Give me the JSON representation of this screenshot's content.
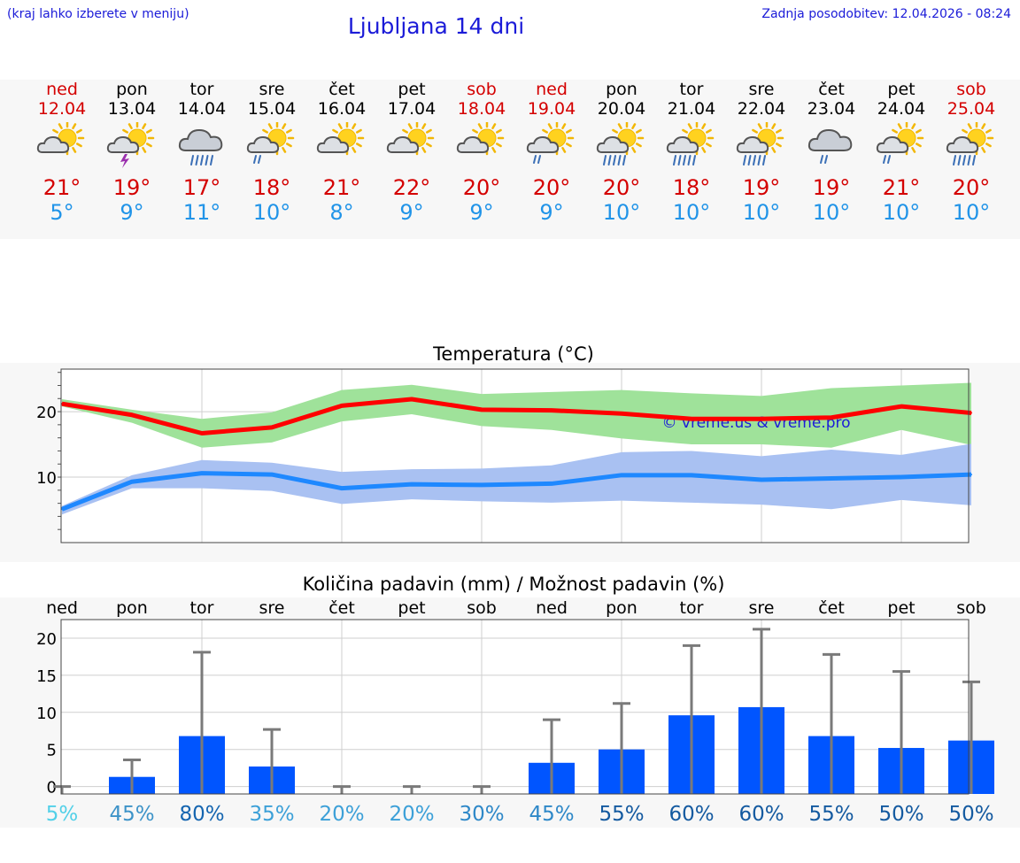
{
  "header": {
    "hint": "(kraj lahko izberete v meniju)",
    "title": "Ljubljana 14 dni",
    "updated": "Zadnja posodobitev: 12.04.2026 - 08:24"
  },
  "colors": {
    "weekend": "#d40000",
    "max": "#d40000",
    "min": "#2194e8",
    "bars": "#0055ff",
    "link": "#1b1bd8"
  },
  "days": [
    {
      "name": "ned",
      "date": "12.04",
      "weekend": true,
      "icon": "sun-cloud-icon",
      "max": "21°",
      "min": "5°"
    },
    {
      "name": "pon",
      "date": "13.04",
      "weekend": false,
      "icon": "sun-thunder-icon",
      "max": "19°",
      "min": "9°"
    },
    {
      "name": "tor",
      "date": "14.04",
      "weekend": false,
      "icon": "cloud-heavy-rain-icon",
      "max": "17°",
      "min": "11°"
    },
    {
      "name": "sre",
      "date": "15.04",
      "weekend": false,
      "icon": "sun-cloud-rain-icon",
      "max": "18°",
      "min": "10°"
    },
    {
      "name": "čet",
      "date": "16.04",
      "weekend": false,
      "icon": "sun-cloud-icon",
      "max": "21°",
      "min": "8°"
    },
    {
      "name": "pet",
      "date": "17.04",
      "weekend": false,
      "icon": "sun-cloud-icon",
      "max": "22°",
      "min": "9°"
    },
    {
      "name": "sob",
      "date": "18.04",
      "weekend": true,
      "icon": "sun-cloud-icon",
      "max": "20°",
      "min": "9°"
    },
    {
      "name": "ned",
      "date": "19.04",
      "weekend": true,
      "icon": "sun-cloud-rain-icon",
      "max": "20°",
      "min": "9°"
    },
    {
      "name": "pon",
      "date": "20.04",
      "weekend": false,
      "icon": "sun-cloud-heavy-rain-icon",
      "max": "20°",
      "min": "10°"
    },
    {
      "name": "tor",
      "date": "21.04",
      "weekend": false,
      "icon": "sun-cloud-heavy-rain-icon",
      "max": "18°",
      "min": "10°"
    },
    {
      "name": "sre",
      "date": "22.04",
      "weekend": false,
      "icon": "sun-cloud-heavy-rain-icon",
      "max": "19°",
      "min": "10°"
    },
    {
      "name": "čet",
      "date": "23.04",
      "weekend": false,
      "icon": "cloud-rain-icon",
      "max": "19°",
      "min": "10°"
    },
    {
      "name": "pet",
      "date": "24.04",
      "weekend": false,
      "icon": "sun-cloud-rain-icon",
      "max": "21°",
      "min": "10°"
    },
    {
      "name": "sob",
      "date": "25.04",
      "weekend": true,
      "icon": "sun-cloud-heavy-rain-icon",
      "max": "20°",
      "min": "10°"
    }
  ],
  "chart_data": [
    {
      "type": "line",
      "title": "Temperatura (°C)",
      "x": [
        "ned",
        "pon",
        "tor",
        "sre",
        "čet",
        "pet",
        "sob",
        "ned",
        "pon",
        "tor",
        "sre",
        "čet",
        "pet",
        "sob"
      ],
      "ylim": [
        0,
        26.5
      ],
      "yticks": [
        10,
        20
      ],
      "grid": true,
      "watermark": "© vreme.us & vreme.pro",
      "series": [
        {
          "role": "max",
          "color": "#ff0000",
          "values": [
            21.2,
            19.5,
            16.7,
            17.6,
            20.9,
            21.9,
            20.3,
            20.2,
            19.7,
            18.9,
            18.9,
            19.1,
            20.8,
            19.8
          ]
        },
        {
          "role": "min",
          "color": "#1e88ff",
          "values": [
            5.1,
            9.3,
            10.6,
            10.4,
            8.3,
            8.9,
            8.8,
            9.0,
            10.3,
            10.3,
            9.6,
            9.8,
            10.0,
            10.4
          ]
        }
      ],
      "bands": [
        {
          "role": "max-range",
          "color": "#9fe29a",
          "low": [
            20.8,
            18.3,
            14.5,
            15.3,
            18.5,
            19.6,
            17.8,
            17.2,
            15.9,
            15.0,
            15.0,
            14.5,
            17.2,
            14.9
          ],
          "high": [
            21.9,
            20.3,
            18.9,
            19.9,
            23.3,
            24.1,
            22.7,
            23.0,
            23.3,
            22.8,
            22.4,
            23.6,
            24.0,
            24.4
          ]
        },
        {
          "role": "min-range",
          "color": "#a9c1f2",
          "low": [
            4.3,
            8.3,
            8.3,
            7.9,
            5.9,
            6.6,
            6.3,
            6.1,
            6.4,
            6.1,
            5.8,
            5.1,
            6.5,
            5.7
          ],
          "high": [
            5.6,
            10.3,
            12.6,
            12.2,
            10.8,
            11.2,
            11.3,
            11.8,
            13.8,
            14.0,
            13.2,
            14.2,
            13.4,
            15.1
          ]
        }
      ]
    },
    {
      "type": "bar",
      "title": "Količina padavin (mm) / Možnost padavin (%)",
      "categories": [
        "ned",
        "pon",
        "tor",
        "sre",
        "čet",
        "pet",
        "sob",
        "ned",
        "pon",
        "tor",
        "sre",
        "čet",
        "pet",
        "sob"
      ],
      "ylim": [
        -1,
        22.5
      ],
      "yticks": [
        0,
        5,
        10,
        15,
        20
      ],
      "grid": true,
      "values": [
        0,
        1.3,
        6.8,
        2.7,
        0,
        0,
        0,
        3.2,
        5.0,
        9.6,
        10.7,
        6.8,
        5.2,
        6.2
      ],
      "error_high": [
        0,
        3.6,
        18.1,
        7.7,
        0,
        0,
        0,
        9.0,
        11.2,
        19.0,
        21.2,
        17.8,
        15.5,
        14.1
      ],
      "probability": [
        "5%",
        "45%",
        "80%",
        "35%",
        "20%",
        "20%",
        "30%",
        "45%",
        "55%",
        "60%",
        "60%",
        "55%",
        "50%",
        "50%"
      ],
      "probability_colors": [
        "#52d0e8",
        "#3d93c8",
        "#1565b0",
        "#3ca0d8",
        "#3ca0d8",
        "#3ca0d8",
        "#2e88c8",
        "#2e88c8",
        "#145aa0",
        "#145aa0",
        "#145aa0",
        "#145aa0",
        "#145aa0",
        "#145aa0"
      ]
    }
  ]
}
